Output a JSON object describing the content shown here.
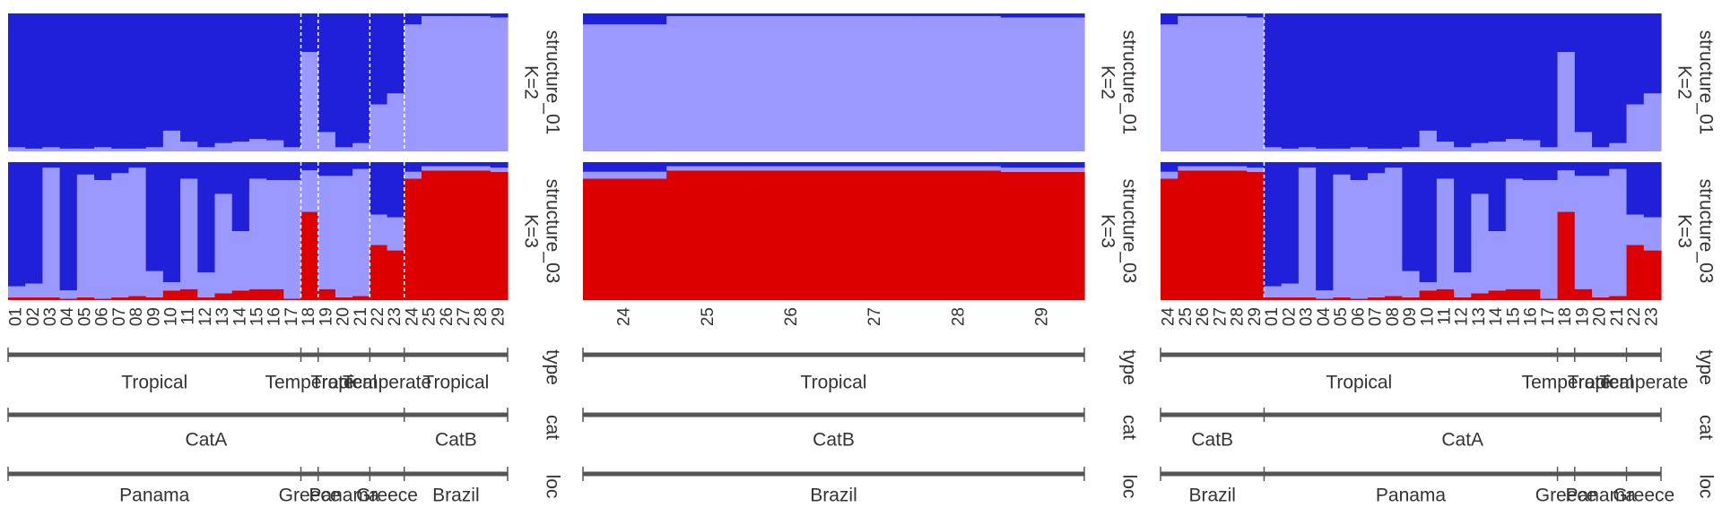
{
  "chart_data": [
    {
      "type": "structure",
      "separator_by": "loc",
      "categories": [
        "01",
        "02",
        "03",
        "04",
        "05",
        "06",
        "07",
        "08",
        "09",
        "10",
        "11",
        "12",
        "13",
        "14",
        "15",
        "16",
        "17",
        "18",
        "19",
        "20",
        "21",
        "22",
        "23",
        "24",
        "25",
        "26",
        "27",
        "28",
        "29"
      ],
      "rows": [
        {
          "name": "structure_01",
          "k_label": "K=2",
          "series": [
            {
              "color": "#9999ff",
              "values": [
                0.03,
                0.02,
                0.03,
                0.02,
                0.02,
                0.03,
                0.02,
                0.02,
                0.03,
                0.15,
                0.07,
                0.03,
                0.06,
                0.07,
                0.09,
                0.08,
                0.03,
                0.72,
                0.14,
                0.03,
                0.06,
                0.34,
                0.42,
                0.92,
                0.98,
                0.98,
                0.98,
                0.98,
                0.97
              ]
            },
            {
              "color": "#2020d8",
              "values": [
                0.97,
                0.98,
                0.97,
                0.98,
                0.98,
                0.97,
                0.98,
                0.98,
                0.97,
                0.85,
                0.93,
                0.97,
                0.94,
                0.93,
                0.91,
                0.92,
                0.97,
                0.28,
                0.86,
                0.97,
                0.94,
                0.66,
                0.58,
                0.08,
                0.02,
                0.02,
                0.02,
                0.02,
                0.03
              ]
            }
          ]
        },
        {
          "name": "structure_03",
          "k_label": "K=3",
          "series": [
            {
              "color": "#dd0000",
              "values": [
                0.02,
                0.02,
                0.02,
                0.01,
                0.02,
                0.01,
                0.02,
                0.03,
                0.02,
                0.07,
                0.08,
                0.02,
                0.05,
                0.07,
                0.08,
                0.08,
                0.01,
                0.64,
                0.08,
                0.02,
                0.03,
                0.4,
                0.36,
                0.88,
                0.94,
                0.94,
                0.94,
                0.94,
                0.93
              ]
            },
            {
              "color": "#9999ff",
              "values": [
                0.08,
                0.1,
                0.94,
                0.06,
                0.89,
                0.86,
                0.9,
                0.93,
                0.19,
                0.06,
                0.8,
                0.18,
                0.72,
                0.43,
                0.8,
                0.79,
                0.86,
                0.3,
                0.82,
                0.88,
                0.92,
                0.22,
                0.24,
                0.05,
                0.03,
                0.03,
                0.03,
                0.03,
                0.03
              ]
            },
            {
              "color": "#2020d8",
              "values": [
                0.9,
                0.88,
                0.04,
                0.93,
                0.09,
                0.13,
                0.08,
                0.04,
                0.79,
                0.87,
                0.12,
                0.8,
                0.23,
                0.5,
                0.12,
                0.13,
                0.13,
                0.06,
                0.1,
                0.1,
                0.05,
                0.38,
                0.4,
                0.07,
                0.03,
                0.03,
                0.03,
                0.03,
                0.04
              ]
            }
          ]
        }
      ],
      "groups": [
        {
          "name": "type",
          "values": [
            "Tropical",
            "Tropical",
            "Tropical",
            "Tropical",
            "Tropical",
            "Tropical",
            "Tropical",
            "Tropical",
            "Tropical",
            "Tropical",
            "Tropical",
            "Tropical",
            "Tropical",
            "Tropical",
            "Tropical",
            "Tropical",
            "Tropical",
            "Temperate",
            "Tropical",
            "Tropical",
            "Tropical",
            "Temperate",
            "Temperate",
            "Tropical",
            "Tropical",
            "Tropical",
            "Tropical",
            "Tropical",
            "Tropical"
          ]
        },
        {
          "name": "cat",
          "values": [
            "CatA",
            "CatA",
            "CatA",
            "CatA",
            "CatA",
            "CatA",
            "CatA",
            "CatA",
            "CatA",
            "CatA",
            "CatA",
            "CatA",
            "CatA",
            "CatA",
            "CatA",
            "CatA",
            "CatA",
            "CatA",
            "CatA",
            "CatA",
            "CatA",
            "CatA",
            "CatA",
            "CatB",
            "CatB",
            "CatB",
            "CatB",
            "CatB",
            "CatB"
          ]
        },
        {
          "name": "loc",
          "values": [
            "Panama",
            "Panama",
            "Panama",
            "Panama",
            "Panama",
            "Panama",
            "Panama",
            "Panama",
            "Panama",
            "Panama",
            "Panama",
            "Panama",
            "Panama",
            "Panama",
            "Panama",
            "Panama",
            "Panama",
            "Greece",
            "Panama",
            "Panama",
            "Panama",
            "Greece",
            "Greece",
            "Brazil",
            "Brazil",
            "Brazil",
            "Brazil",
            "Brazil",
            "Brazil"
          ]
        }
      ]
    },
    {
      "type": "structure",
      "separator_by": null,
      "categories": [
        "24",
        "25",
        "26",
        "27",
        "28",
        "29"
      ],
      "rows": [
        {
          "name": "structure_01",
          "k_label": "K=2",
          "series": [
            {
              "color": "#9999ff",
              "values": [
                0.92,
                0.98,
                0.98,
                0.98,
                0.98,
                0.97
              ]
            },
            {
              "color": "#2020d8",
              "values": [
                0.08,
                0.02,
                0.02,
                0.02,
                0.02,
                0.03
              ]
            }
          ]
        },
        {
          "name": "structure_03",
          "k_label": "K=3",
          "series": [
            {
              "color": "#dd0000",
              "values": [
                0.88,
                0.94,
                0.94,
                0.94,
                0.94,
                0.93
              ]
            },
            {
              "color": "#9999ff",
              "values": [
                0.05,
                0.03,
                0.03,
                0.03,
                0.03,
                0.03
              ]
            },
            {
              "color": "#2020d8",
              "values": [
                0.07,
                0.03,
                0.03,
                0.03,
                0.03,
                0.04
              ]
            }
          ]
        }
      ],
      "groups": [
        {
          "name": "type",
          "values": [
            "Tropical",
            "Tropical",
            "Tropical",
            "Tropical",
            "Tropical",
            "Tropical"
          ]
        },
        {
          "name": "cat",
          "values": [
            "CatB",
            "CatB",
            "CatB",
            "CatB",
            "CatB",
            "CatB"
          ]
        },
        {
          "name": "loc",
          "values": [
            "Brazil",
            "Brazil",
            "Brazil",
            "Brazil",
            "Brazil",
            "Brazil"
          ]
        }
      ]
    },
    {
      "type": "structure",
      "separator_by": "cat",
      "categories": [
        "24",
        "25",
        "26",
        "27",
        "28",
        "29",
        "01",
        "02",
        "03",
        "04",
        "05",
        "06",
        "07",
        "08",
        "09",
        "10",
        "11",
        "12",
        "13",
        "14",
        "15",
        "16",
        "17",
        "18",
        "19",
        "20",
        "21",
        "22",
        "23"
      ],
      "rows": [
        {
          "name": "structure_01",
          "k_label": "K=2",
          "series": [
            {
              "color": "#9999ff",
              "values": [
                0.92,
                0.98,
                0.98,
                0.98,
                0.98,
                0.97,
                0.03,
                0.02,
                0.03,
                0.02,
                0.02,
                0.03,
                0.02,
                0.02,
                0.03,
                0.15,
                0.07,
                0.03,
                0.06,
                0.07,
                0.09,
                0.08,
                0.03,
                0.72,
                0.14,
                0.03,
                0.06,
                0.34,
                0.42
              ]
            },
            {
              "color": "#2020d8",
              "values": [
                0.08,
                0.02,
                0.02,
                0.02,
                0.02,
                0.03,
                0.97,
                0.98,
                0.97,
                0.98,
                0.98,
                0.97,
                0.98,
                0.98,
                0.97,
                0.85,
                0.93,
                0.97,
                0.94,
                0.93,
                0.91,
                0.92,
                0.97,
                0.28,
                0.86,
                0.97,
                0.94,
                0.66,
                0.58
              ]
            }
          ]
        },
        {
          "name": "structure_03",
          "k_label": "K=3",
          "series": [
            {
              "color": "#dd0000",
              "values": [
                0.88,
                0.94,
                0.94,
                0.94,
                0.94,
                0.93,
                0.02,
                0.02,
                0.02,
                0.01,
                0.02,
                0.01,
                0.02,
                0.03,
                0.02,
                0.07,
                0.08,
                0.02,
                0.05,
                0.07,
                0.08,
                0.08,
                0.01,
                0.64,
                0.08,
                0.02,
                0.03,
                0.4,
                0.36
              ]
            },
            {
              "color": "#9999ff",
              "values": [
                0.05,
                0.03,
                0.03,
                0.03,
                0.03,
                0.03,
                0.08,
                0.1,
                0.94,
                0.06,
                0.89,
                0.86,
                0.9,
                0.93,
                0.19,
                0.06,
                0.8,
                0.18,
                0.72,
                0.43,
                0.8,
                0.79,
                0.86,
                0.3,
                0.82,
                0.88,
                0.92,
                0.22,
                0.24
              ]
            },
            {
              "color": "#2020d8",
              "values": [
                0.07,
                0.03,
                0.03,
                0.03,
                0.03,
                0.04,
                0.9,
                0.88,
                0.04,
                0.93,
                0.09,
                0.13,
                0.08,
                0.04,
                0.79,
                0.87,
                0.12,
                0.8,
                0.23,
                0.5,
                0.12,
                0.13,
                0.13,
                0.06,
                0.1,
                0.1,
                0.05,
                0.38,
                0.4
              ]
            }
          ]
        }
      ],
      "groups": [
        {
          "name": "type",
          "values": [
            "Tropical",
            "Tropical",
            "Tropical",
            "Tropical",
            "Tropical",
            "Tropical",
            "Tropical",
            "Tropical",
            "Tropical",
            "Tropical",
            "Tropical",
            "Tropical",
            "Tropical",
            "Tropical",
            "Tropical",
            "Tropical",
            "Tropical",
            "Tropical",
            "Tropical",
            "Tropical",
            "Tropical",
            "Tropical",
            "Tropical",
            "Temperate",
            "Tropical",
            "Tropical",
            "Tropical",
            "Temperate",
            "Temperate"
          ]
        },
        {
          "name": "cat",
          "values": [
            "CatB",
            "CatB",
            "CatB",
            "CatB",
            "CatB",
            "CatB",
            "CatA",
            "CatA",
            "CatA",
            "CatA",
            "CatA",
            "CatA",
            "CatA",
            "CatA",
            "CatA",
            "CatA",
            "CatA",
            "CatA",
            "CatA",
            "CatA",
            "CatA",
            "CatA",
            "CatA",
            "CatA",
            "CatA",
            "CatA",
            "CatA",
            "CatA",
            "CatA"
          ]
        },
        {
          "name": "loc",
          "values": [
            "Brazil",
            "Brazil",
            "Brazil",
            "Brazil",
            "Brazil",
            "Brazil",
            "Panama",
            "Panama",
            "Panama",
            "Panama",
            "Panama",
            "Panama",
            "Panama",
            "Panama",
            "Panama",
            "Panama",
            "Panama",
            "Panama",
            "Panama",
            "Panama",
            "Panama",
            "Panama",
            "Panama",
            "Greece",
            "Panama",
            "Panama",
            "Panama",
            "Greece",
            "Greece"
          ]
        }
      ]
    }
  ]
}
